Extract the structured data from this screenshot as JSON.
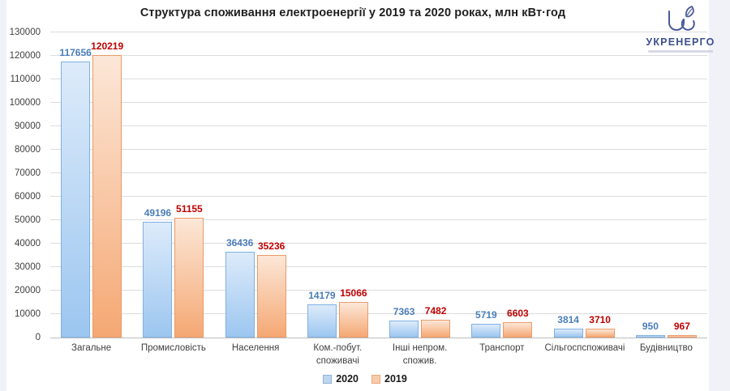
{
  "title": "Структура споживання електроенергії у 2019 та 2020 роках, млн кВт·год",
  "logo": {
    "name": "УКРЕНЕРГО",
    "mark_color": "#4a5b9b"
  },
  "colors": {
    "gridline": "#dcdce0",
    "axis_line": "#bdbdbd",
    "axis_text": "#404040",
    "title_text": "#1f1f1f",
    "side_strip": "#f1f1f8"
  },
  "chart_data": {
    "type": "bar",
    "title": "Структура споживання електроенергії у 2019 та 2020 роках, млн кВт·год",
    "xlabel": "",
    "ylabel": "",
    "ylim": [
      0,
      130000
    ],
    "ytick_step": 10000,
    "yticks": [
      0,
      10000,
      20000,
      30000,
      40000,
      50000,
      60000,
      70000,
      80000,
      90000,
      100000,
      110000,
      120000,
      130000
    ],
    "grid": true,
    "legend_position": "bottom",
    "categories": [
      "Загальне",
      "Промисловість",
      "Населення",
      "Ком.-побут. споживачі",
      "Інші непром. спожив.",
      "Транспорт",
      "Сільгоспспоживачі",
      "Будівництво"
    ],
    "series": [
      {
        "name": "2020",
        "values": [
          117656,
          49196,
          36436,
          14179,
          7363,
          5719,
          3814,
          950
        ],
        "fill_top": "#ddebfa",
        "fill_bottom": "#9cc6f0",
        "border": "#7fb0e2",
        "label_color": "#4a7db8",
        "swatch_fill": "#bdd7ee",
        "swatch_border": "#8db3d9"
      },
      {
        "name": "2019",
        "values": [
          120219,
          51155,
          35236,
          15066,
          7482,
          6603,
          3710,
          967
        ],
        "fill_top": "#fce7d8",
        "fill_bottom": "#f5a873",
        "border": "#eb9a68",
        "label_color": "#c00000",
        "swatch_fill": "#f8cbad",
        "swatch_border": "#f0a878"
      }
    ]
  }
}
